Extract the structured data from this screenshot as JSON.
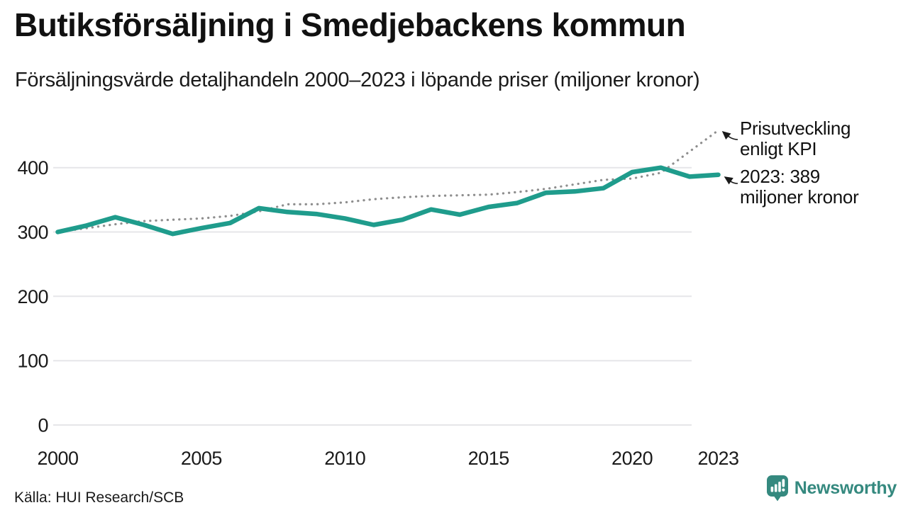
{
  "header": {
    "title": "Butiksförsäljning i Smedjebackens kommun",
    "subtitle": "Försäljningsvärde detaljhandeln 2000–2023 i löpande priser (miljoner kronor)"
  },
  "chart_data": {
    "type": "line",
    "title": "Butiksförsäljning i Smedjebackens kommun",
    "subtitle": "Försäljningsvärde detaljhandeln 2000–2023 i löpande priser (miljoner kronor)",
    "unit": "miljoner kronor",
    "x": [
      2000,
      2001,
      2002,
      2003,
      2004,
      2005,
      2006,
      2007,
      2008,
      2009,
      2010,
      2011,
      2012,
      2013,
      2014,
      2015,
      2016,
      2017,
      2018,
      2019,
      2020,
      2021,
      2022,
      2023
    ],
    "series": [
      {
        "name": "Butiksförsäljning",
        "color": "#1f9c8c",
        "line_style": "solid",
        "values": [
          300,
          310,
          323,
          311,
          297,
          306,
          314,
          337,
          331,
          328,
          321,
          311,
          319,
          335,
          327,
          339,
          345,
          361,
          363,
          368,
          393,
          400,
          386,
          389
        ]
      },
      {
        "name": "Prisutveckling enligt KPI",
        "color": "#8e8e8e",
        "line_style": "dotted",
        "values": [
          300,
          306,
          312,
          317,
          319,
          321,
          325,
          332,
          343,
          343,
          346,
          351,
          354,
          356,
          357,
          358,
          362,
          367,
          374,
          381,
          383,
          392,
          425,
          458
        ]
      }
    ],
    "yticks": [
      0,
      100,
      200,
      300,
      400
    ],
    "xticks": [
      2000,
      2005,
      2010,
      2015,
      2020,
      2023
    ],
    "ylim": [
      0,
      470
    ],
    "xlim": [
      2000,
      2023
    ],
    "grid": "horizontal",
    "legend_position": "annotations-right",
    "annotations": [
      {
        "series": "Prisutveckling enligt KPI",
        "line1": "Prisutveckling",
        "line2": "enligt KPI"
      },
      {
        "series": "Butiksförsäljning",
        "line1": "2023: 389",
        "line2": "miljoner kronor"
      }
    ]
  },
  "footer": {
    "source": "Källa: HUI Research/SCB",
    "brand": "Newsworthy"
  },
  "colors": {
    "accent": "#1f9c8c",
    "kpi_line": "#8e8e8e",
    "grid": "#e6e6e9",
    "text": "#1a1a1a",
    "brand": "#35897f"
  }
}
